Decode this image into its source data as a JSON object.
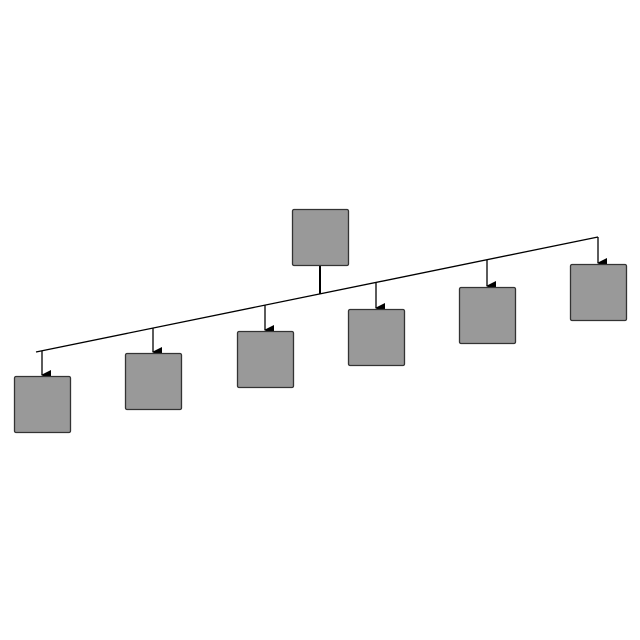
{
  "diagram": {
    "type": "tree",
    "node_fill": "#999999",
    "node_stroke": "#333333",
    "edge_color": "#000000",
    "root": {
      "id": "root",
      "label": ""
    },
    "children": [
      {
        "id": "child-1",
        "label": ""
      },
      {
        "id": "child-2",
        "label": ""
      },
      {
        "id": "child-3",
        "label": ""
      },
      {
        "id": "child-4",
        "label": ""
      },
      {
        "id": "child-5",
        "label": ""
      },
      {
        "id": "child-6",
        "label": ""
      }
    ]
  }
}
